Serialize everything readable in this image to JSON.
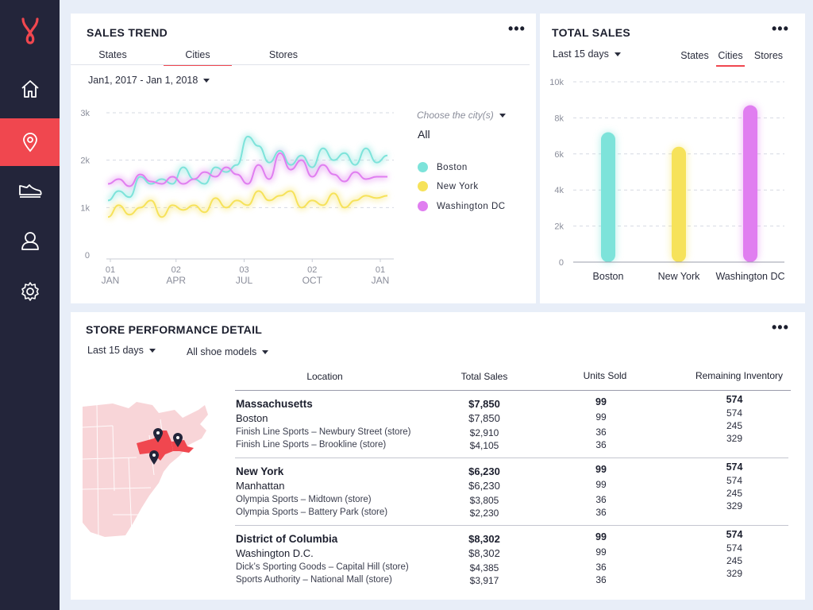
{
  "colors": {
    "accent": "#f0474f",
    "boston": "#7de3da",
    "newyork": "#f6e25a",
    "washington": "#e07ef0"
  },
  "sales_trend": {
    "title": "SALES TREND",
    "tabs": [
      "States",
      "Cities",
      "Stores"
    ],
    "active_tab": "Cities",
    "date_range": "Jan1, 2017 - Jan 1, 2018",
    "city_hint": "Choose the city(s)",
    "city_value": "All",
    "legend": [
      "Boston",
      "New York",
      "Washington DC"
    ]
  },
  "total_sales": {
    "title": "TOTAL SALES",
    "period": "Last 15 days",
    "tabs": [
      "States",
      "Cities",
      "Stores"
    ],
    "active_tab": "Cities"
  },
  "chart_data": [
    {
      "type": "line",
      "title": "SALES TREND",
      "x_ticks": [
        [
          "01",
          "JAN"
        ],
        [
          "02",
          "APR"
        ],
        [
          "03",
          "JUL"
        ],
        [
          "02",
          "OCT"
        ],
        [
          "01",
          "JAN"
        ]
      ],
      "y_ticks": [
        "0",
        "1k",
        "2k",
        "3k"
      ],
      "ylim": [
        0,
        3000
      ],
      "series": [
        {
          "name": "Boston",
          "values": [
            1150,
            1350,
            1220,
            1650,
            1500,
            1600,
            1500,
            1850,
            1600,
            1500,
            1850,
            1750,
            1900,
            2500,
            2300,
            1950,
            2200,
            1900,
            2100,
            1850,
            2250,
            2000,
            2150,
            1900,
            2250,
            1950,
            2100
          ]
        },
        {
          "name": "New York",
          "values": [
            800,
            1050,
            850,
            1000,
            1150,
            800,
            1050,
            950,
            1050,
            900,
            1200,
            1000,
            1150,
            1050,
            1350,
            1150,
            1250,
            1350,
            1000,
            1150,
            1050,
            1300,
            1000,
            1150,
            1250,
            1200,
            1250
          ]
        },
        {
          "name": "Washington DC",
          "values": [
            1500,
            1600,
            1450,
            1700,
            1550,
            1500,
            1650,
            1500,
            1600,
            1750,
            1650,
            1850,
            1700,
            1500,
            1900,
            1600,
            2150,
            1800,
            2000,
            1650,
            1900,
            1700,
            1550,
            1750,
            1600,
            1650,
            1650
          ]
        }
      ]
    },
    {
      "type": "bar",
      "title": "TOTAL SALES",
      "categories": [
        "Boston",
        "New York",
        "Washington DC"
      ],
      "values": [
        7200,
        6400,
        8700
      ],
      "y_ticks": [
        "0",
        "2k",
        "4k",
        "6k",
        "8k",
        "10k"
      ],
      "ylim": [
        0,
        10000
      ]
    }
  ],
  "store_performance": {
    "title": "STORE PERFORMANCE DETAIL",
    "period": "Last 15 days",
    "models": "All shoe models",
    "headers": [
      "Location",
      "Total Sales",
      "Units Sold",
      "Remaining Inventory"
    ],
    "groups": [
      {
        "state": "Massachusetts",
        "state_total": "$7,850",
        "state_units": "99",
        "state_inv": "574",
        "city": "Boston",
        "city_total": "$7,850",
        "city_units": "99",
        "city_inv": "574",
        "stores": [
          {
            "name": "Finish Line Sports – Newbury Street (store)",
            "total": "$2,910",
            "units": "36",
            "inv": "245"
          },
          {
            "name": "Finish Line Sports – Brookline (store)",
            "total": "$4,105",
            "units": "36",
            "inv": "329"
          }
        ]
      },
      {
        "state": "New York",
        "state_total": "$6,230",
        "state_units": "99",
        "state_inv": "574",
        "city": "Manhattan",
        "city_total": "$6,230",
        "city_units": "99",
        "city_inv": "574",
        "stores": [
          {
            "name": "Olympia Sports – Midtown (store)",
            "total": "$3,805",
            "units": "36",
            "inv": "245"
          },
          {
            "name": "Olympia Sports – Battery Park (store)",
            "total": "$2,230",
            "units": "36",
            "inv": "329"
          }
        ]
      },
      {
        "state": "District of Columbia",
        "state_total": "$8,302",
        "state_units": "99",
        "state_inv": "574",
        "city": "Washington D.C.",
        "city_total": "$8,302",
        "city_units": "99",
        "city_inv": "574",
        "stores": [
          {
            "name": "Dick’s Sporting Goods – Capital Hill (store)",
            "total": "$4,385",
            "units": "36",
            "inv": "245"
          },
          {
            "name": "Sports Authority – National Mall (store)",
            "total": "$3,917",
            "units": "36",
            "inv": "329"
          }
        ]
      }
    ]
  }
}
